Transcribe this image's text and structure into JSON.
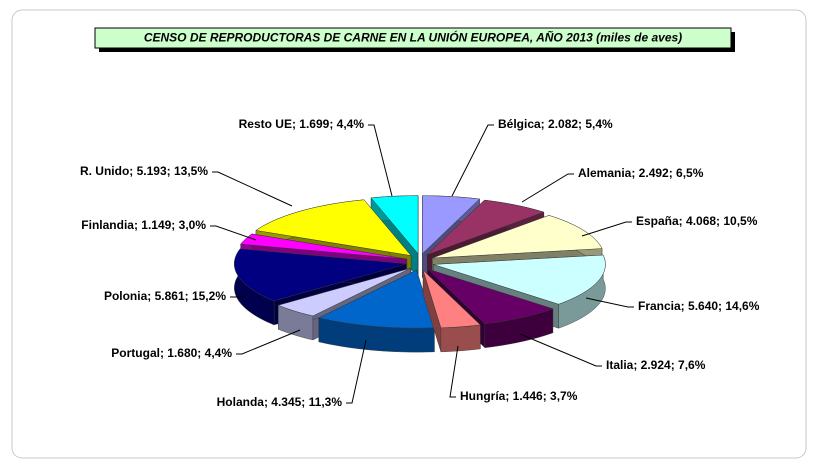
{
  "chart_data": {
    "type": "pie3d",
    "title": "CENSO DE REPRODUCTORAS DE CARNE EN LA UNIÓN EUROPEA, AÑO 2013 (miles de aves)",
    "values": [
      2082,
      2492,
      4068,
      5640,
      2924,
      1446,
      4345,
      1680,
      5861,
      1149,
      5193,
      1699
    ],
    "value_labels": [
      "Bélgica; 2.082; 5,4%",
      "Alemania; 2.492; 6,5%",
      "España; 4.068; 10,5%",
      "Francia; 5.640; 14,6%",
      "Italia; 2.924; 7,6%",
      "Hungría; 1.446; 3,7%",
      "Holanda; 4.345; 11,3%",
      "Portugal; 1.680; 4,4%",
      "Polonia; 5.861; 15,2%",
      "Finlandia; 1.149; 3,0%",
      "R. Unido; 5.193; 13,5%",
      "Resto UE; 1.699; 4,4%"
    ],
    "colors": [
      "#9999ff",
      "#993366",
      "#ffffcc",
      "#ccffff",
      "#660066",
      "#ff8080",
      "#0066cc",
      "#ccccff",
      "#000080",
      "#ff00ff",
      "#ffff00",
      "#00ffff"
    ]
  }
}
